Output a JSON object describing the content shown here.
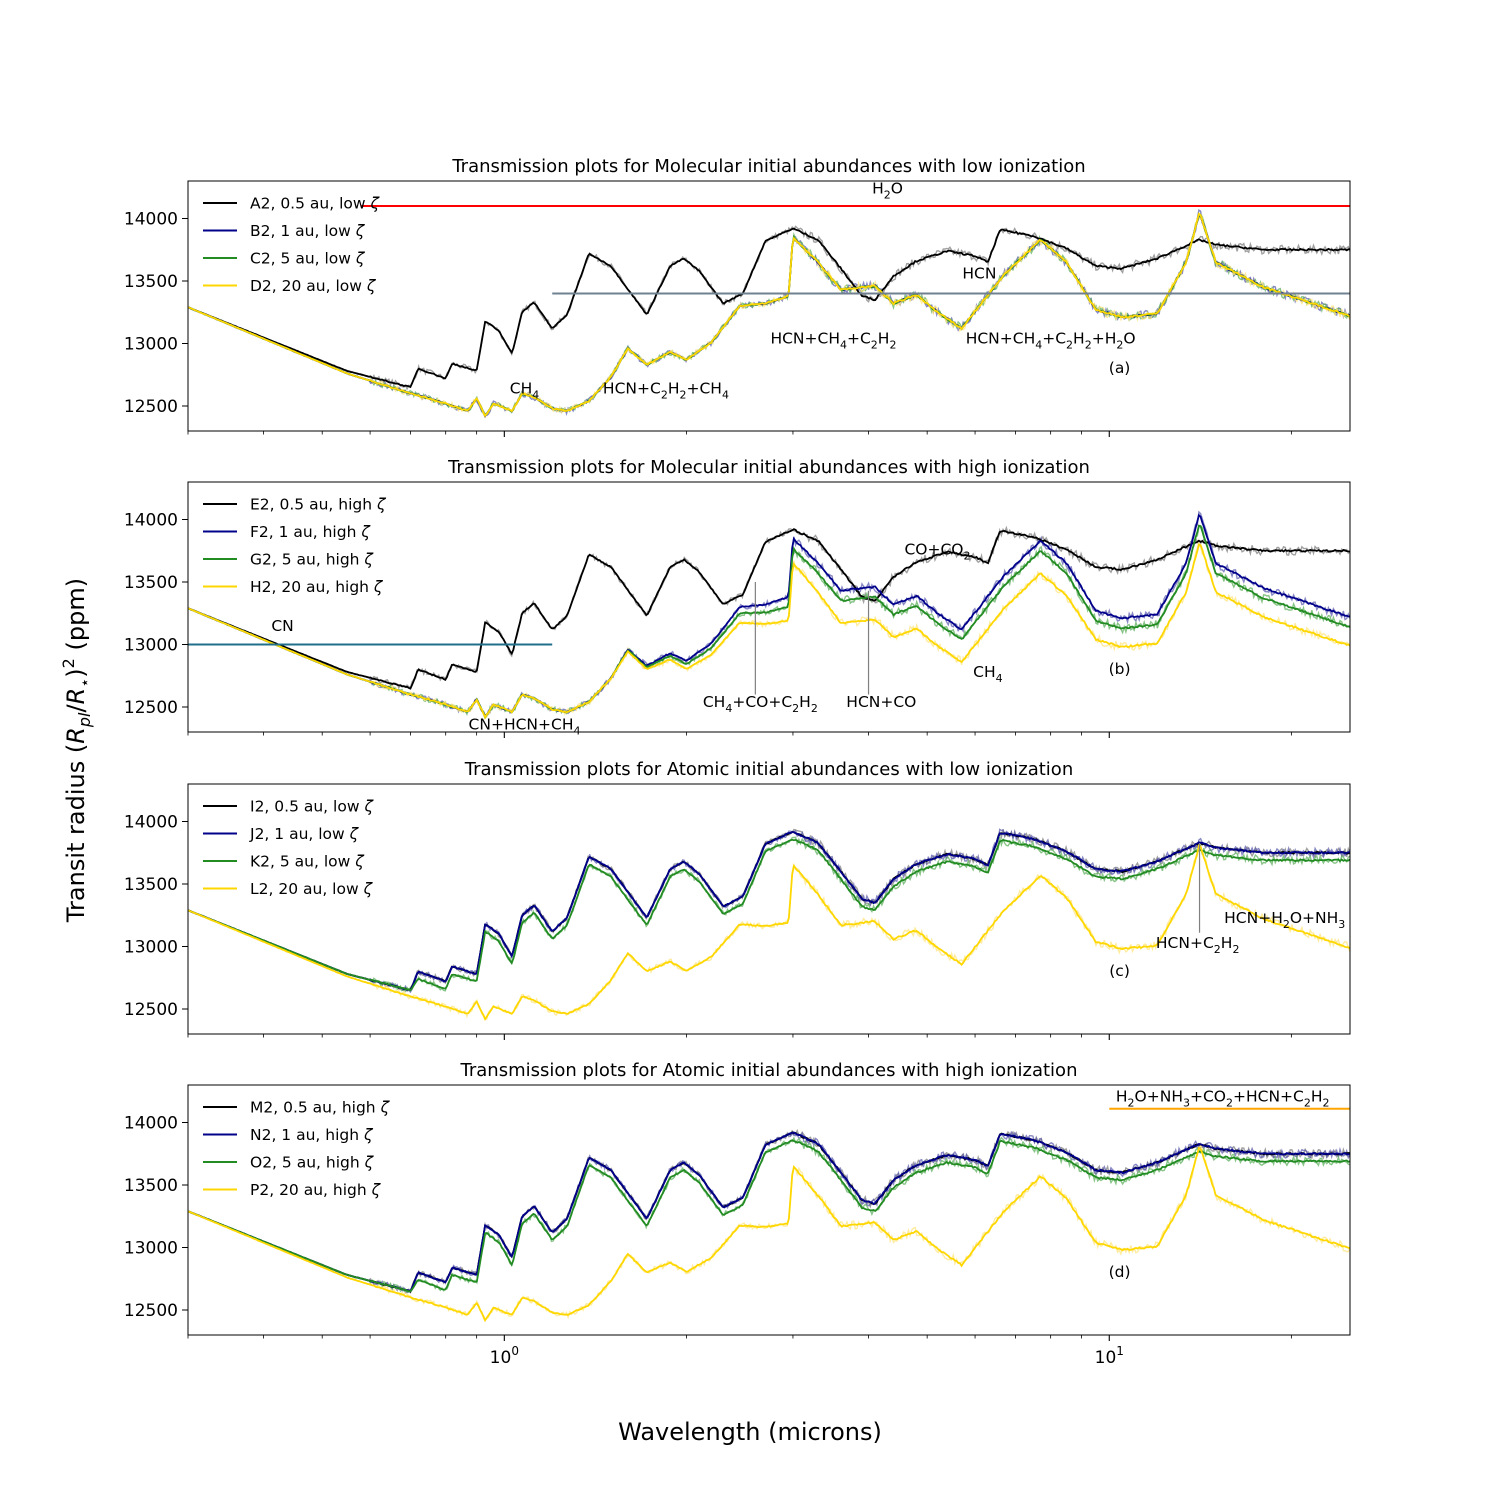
{
  "figure": {
    "ylabel": "Transit radius (R_pl/R_*)^2 (ppm)",
    "ylabel_parts": [
      "Transit radius (",
      "R",
      "pl",
      "/",
      "R",
      "⋆",
      ")",
      "2",
      " (ppm)"
    ],
    "xlabel": "Wavelength (microns)",
    "xticks": [
      {
        "value": 1,
        "base": "10",
        "exp": "0"
      },
      {
        "value": 10,
        "base": "10",
        "exp": "1"
      }
    ]
  },
  "chart_data": [
    {
      "type": "line",
      "panel_label": "(a)",
      "title": "Transmission plots for Molecular initial abundances with low ionization",
      "xscale": "log",
      "xlim": [
        0.3,
        25
      ],
      "ylim": [
        12300,
        14300
      ],
      "yticks": [
        12500,
        13000,
        13500,
        14000
      ],
      "colors": [
        "#000000",
        "#00008b",
        "#228b22",
        "#ffd700"
      ],
      "series": [
        {
          "name": "A2, 0.5 au, low ζ",
          "label": "A2, 0.5 au, low ",
          "profile": "hot"
        },
        {
          "name": "B2, 1 au, low ζ",
          "label": "B2, 1 au, low ",
          "profile": "cold"
        },
        {
          "name": "C2, 5 au, low ζ",
          "label": "C2, 5 au, low ",
          "profile": "cold"
        },
        {
          "name": "D2, 20 au, low ζ",
          "label": "D2, 20 au, low ",
          "profile": "cold"
        }
      ],
      "hbars": [
        {
          "x0": 0.58,
          "x1": 25,
          "y": 14100,
          "color": "#ff0000"
        },
        {
          "x0": 1.2,
          "x1": 25,
          "y": 13400,
          "color": "#708090"
        }
      ],
      "annotations": [
        {
          "parts": [
            [
              "H",
              ""
            ],
            [
              "2",
              "sub"
            ],
            [
              "O",
              ""
            ]
          ],
          "x": 4.3,
          "y": 14200
        },
        {
          "parts": [
            [
              "HCN",
              ""
            ]
          ],
          "x": 6.1,
          "y": 13520
        },
        {
          "parts": [
            [
              "HCN+CH",
              ""
            ],
            [
              "4",
              "sub"
            ],
            [
              "+C",
              ""
            ],
            [
              "2",
              "sub"
            ],
            [
              "H",
              ""
            ],
            [
              "2",
              "sub"
            ]
          ],
          "x": 3.5,
          "y": 13000
        },
        {
          "parts": [
            [
              "HCN+CH",
              ""
            ],
            [
              "4",
              "sub"
            ],
            [
              "+C",
              ""
            ],
            [
              "2",
              "sub"
            ],
            [
              "H",
              ""
            ],
            [
              "2",
              "sub"
            ],
            [
              "+H",
              ""
            ],
            [
              "2",
              "sub"
            ],
            [
              "O",
              ""
            ]
          ],
          "x": 8.0,
          "y": 13000
        },
        {
          "parts": [
            [
              "HCN+C",
              ""
            ],
            [
              "2",
              "sub"
            ],
            [
              "H",
              ""
            ],
            [
              "2",
              "sub"
            ],
            [
              "+CH",
              ""
            ],
            [
              "4",
              "sub"
            ]
          ],
          "x": 1.85,
          "y": 12600
        },
        {
          "parts": [
            [
              "CH",
              ""
            ],
            [
              "4",
              "sub"
            ]
          ],
          "x": 1.08,
          "y": 12600
        }
      ],
      "vlines": []
    },
    {
      "type": "line",
      "panel_label": "(b)",
      "title": "Transmission plots for Molecular initial abundances with high ionization",
      "xscale": "log",
      "xlim": [
        0.3,
        25
      ],
      "ylim": [
        12300,
        14300
      ],
      "yticks": [
        12500,
        13000,
        13500,
        14000
      ],
      "colors": [
        "#000000",
        "#00008b",
        "#228b22",
        "#ffd700"
      ],
      "series": [
        {
          "name": "E2, 0.5 au, high ζ",
          "label": "E2, 0.5 au, high ",
          "profile": "hot"
        },
        {
          "name": "F2, 1 au, high ζ",
          "label": "F2, 1 au, high ",
          "profile": "f"
        },
        {
          "name": "G2, 5 au, high ζ",
          "label": "G2, 5 au, high ",
          "profile": "g"
        },
        {
          "name": "H2, 20 au, high ζ",
          "label": "H2, 20 au, high ",
          "profile": "h"
        }
      ],
      "hbars": [
        {
          "x0": 0.3,
          "x1": 1.2,
          "y": 13000,
          "color": "#1f6f8b"
        }
      ],
      "annotations": [
        {
          "parts": [
            [
              "CN",
              ""
            ]
          ],
          "x": 0.43,
          "y": 13110
        },
        {
          "parts": [
            [
              "CO+CO",
              ""
            ],
            [
              "2",
              "sub"
            ]
          ],
          "x": 5.2,
          "y": 13720
        },
        {
          "parts": [
            [
              "CH",
              ""
            ],
            [
              "4",
              "sub"
            ],
            [
              "+CO+C",
              ""
            ],
            [
              "2",
              "sub"
            ],
            [
              "H",
              ""
            ],
            [
              "2",
              "sub"
            ]
          ],
          "x": 2.65,
          "y": 12500
        },
        {
          "parts": [
            [
              "HCN+CO",
              ""
            ]
          ],
          "x": 4.2,
          "y": 12500
        },
        {
          "parts": [
            [
              "CH",
              ""
            ],
            [
              "4",
              "sub"
            ]
          ],
          "x": 6.3,
          "y": 12740
        },
        {
          "parts": [
            [
              "CN+HCN+CH",
              ""
            ],
            [
              "4",
              "sub"
            ]
          ],
          "x": 1.08,
          "y": 12320
        }
      ],
      "vlines": [
        {
          "x": 2.6,
          "y0": 12600,
          "y1": 13500
        },
        {
          "x": 4.0,
          "y0": 12600,
          "y1": 13430
        }
      ]
    },
    {
      "type": "line",
      "panel_label": "(c)",
      "title": "Transmission plots for Atomic initial abundances with low ionization",
      "xscale": "log",
      "xlim": [
        0.3,
        25
      ],
      "ylim": [
        12300,
        14300
      ],
      "yticks": [
        12500,
        13000,
        13500,
        14000
      ],
      "colors": [
        "#000000",
        "#00008b",
        "#228b22",
        "#ffd700"
      ],
      "series": [
        {
          "name": "I2, 0.5 au, low ζ",
          "label": "I2, 0.5 au, low ",
          "profile": "hot"
        },
        {
          "name": "J2, 1 au, low ζ",
          "label": "J2, 1 au, low ",
          "profile": "hot"
        },
        {
          "name": "K2, 5 au, low ζ",
          "label": "K2, 5 au, low ",
          "profile": "hotlow"
        },
        {
          "name": "L2, 20 au, low ζ",
          "label": "L2, 20 au, low ",
          "profile": "h"
        }
      ],
      "hbars": [],
      "annotations": [
        {
          "parts": [
            [
              "HCN+C",
              ""
            ],
            [
              "2",
              "sub"
            ],
            [
              "H",
              ""
            ],
            [
              "2",
              "sub"
            ]
          ],
          "x": 14.0,
          "y": 12990
        },
        {
          "parts": [
            [
              "HCN+H",
              ""
            ],
            [
              "2",
              "sub"
            ],
            [
              "O+NH",
              ""
            ],
            [
              "3",
              "sub"
            ]
          ],
          "x": 19.5,
          "y": 13190
        }
      ],
      "vlines": [
        {
          "x": 14.1,
          "y0": 13110,
          "y1": 13820
        }
      ]
    },
    {
      "type": "line",
      "panel_label": "(d)",
      "title": "Transmission plots for Atomic initial abundances with high ionization",
      "xscale": "log",
      "xlim": [
        0.3,
        25
      ],
      "ylim": [
        12300,
        14300
      ],
      "yticks": [
        12500,
        13000,
        13500,
        14000
      ],
      "colors": [
        "#000000",
        "#00008b",
        "#228b22",
        "#ffd700"
      ],
      "series": [
        {
          "name": "M2, 0.5 au, high ζ",
          "label": "M2, 0.5 au, high ",
          "profile": "hot"
        },
        {
          "name": "N2, 1 au, high ζ",
          "label": "N2, 1 au, high ",
          "profile": "hot"
        },
        {
          "name": "O2, 5 au, high ζ",
          "label": "O2, 5 au, high ",
          "profile": "hotlow"
        },
        {
          "name": "P2, 20 au, high ζ",
          "label": "P2, 20 au, high ",
          "profile": "h"
        }
      ],
      "hbars": [
        {
          "x0": 10.0,
          "x1": 25,
          "y": 14110,
          "color": "#ffa500"
        }
      ],
      "annotations": [
        {
          "parts": [
            [
              "H",
              ""
            ],
            [
              "2",
              "sub"
            ],
            [
              "O+NH",
              ""
            ],
            [
              "3",
              "sub"
            ],
            [
              "+CO",
              ""
            ],
            [
              "2",
              "sub"
            ],
            [
              "+HCN+C",
              ""
            ],
            [
              "2",
              "sub"
            ],
            [
              "H",
              ""
            ],
            [
              "2",
              "sub"
            ]
          ],
          "x": 15.4,
          "y": 14170
        }
      ],
      "vlines": []
    }
  ]
}
